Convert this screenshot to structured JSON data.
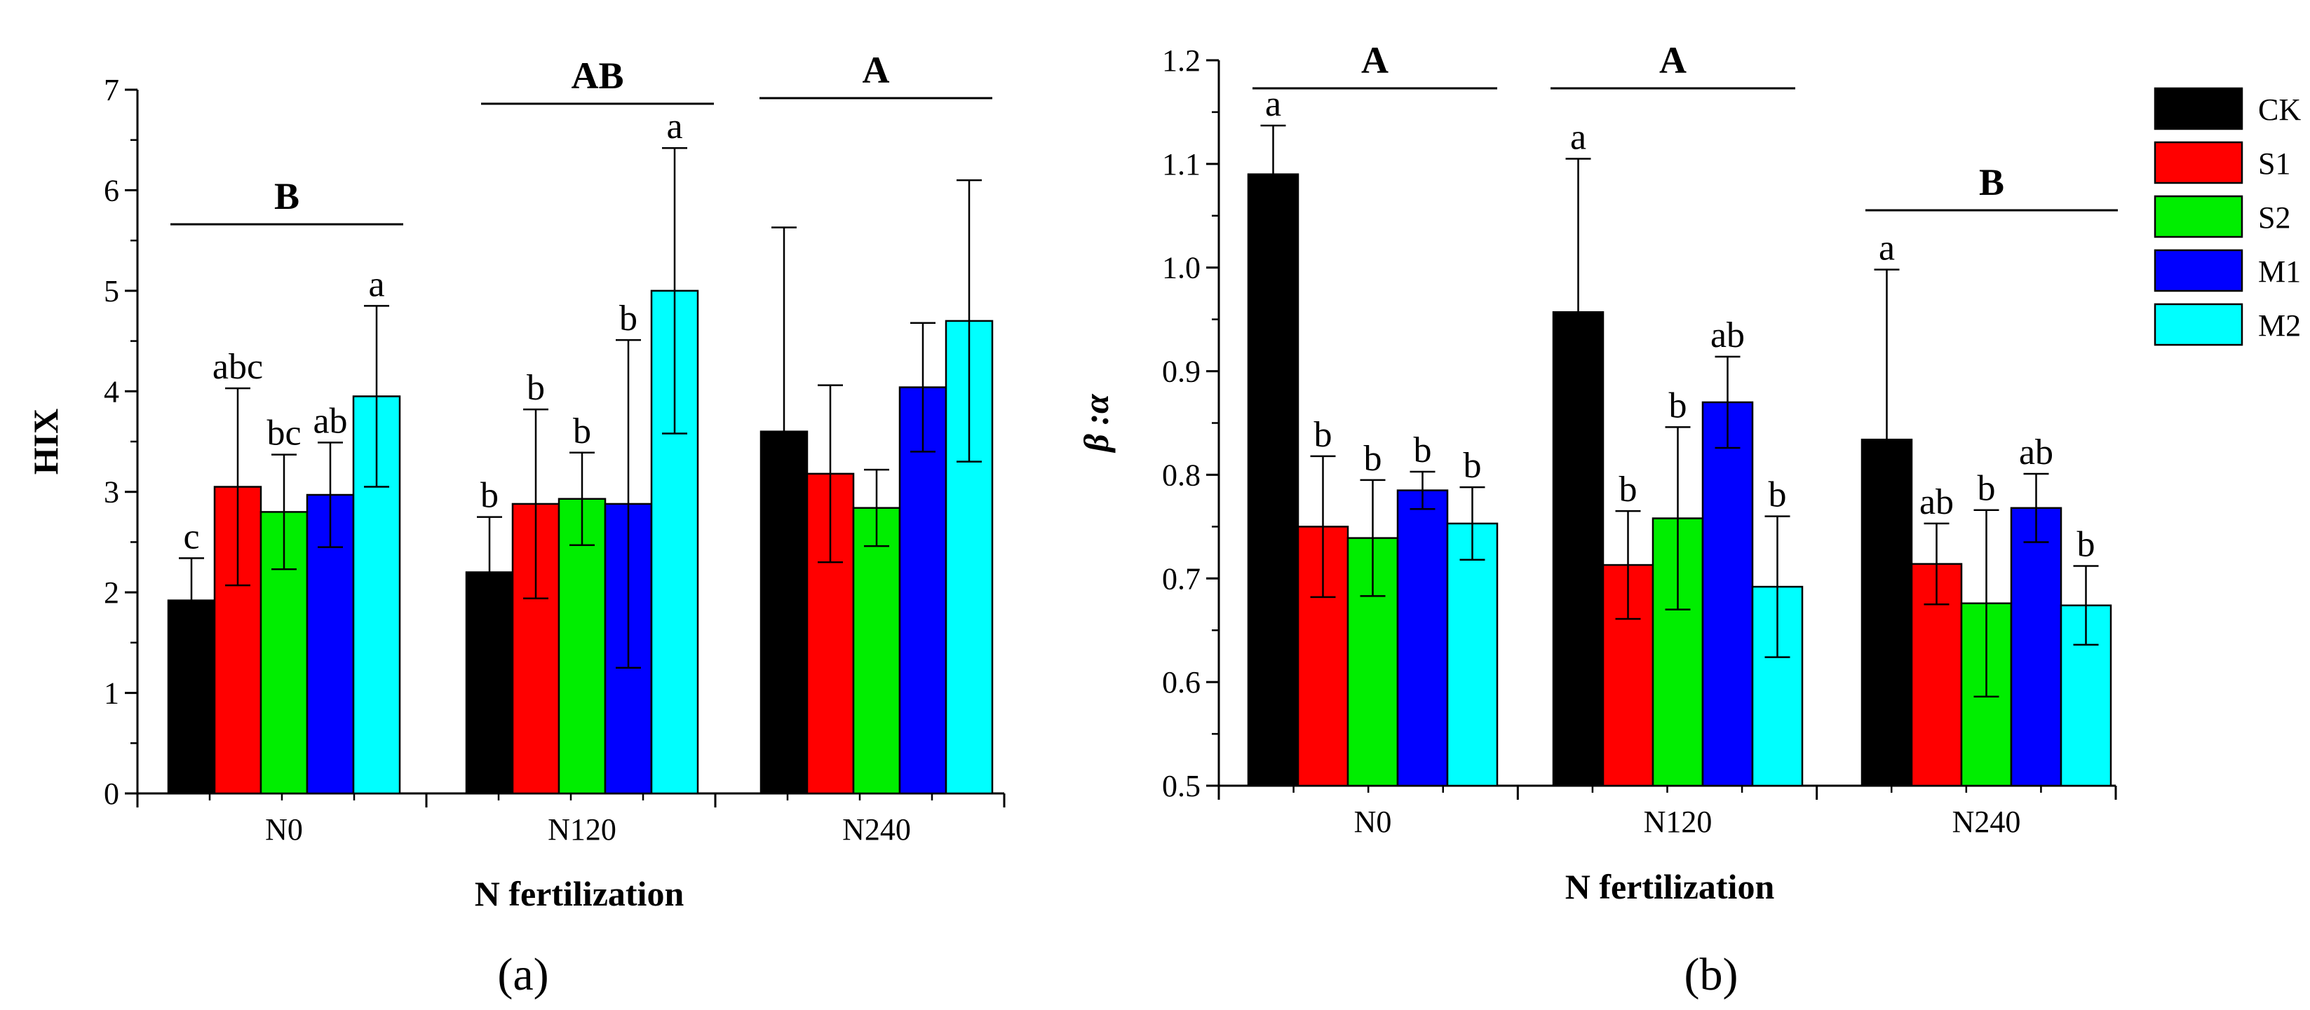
{
  "legend": {
    "items": [
      {
        "name": "CK",
        "color": "#000000"
      },
      {
        "name": "S1",
        "color": "#ff0000"
      },
      {
        "name": "S2",
        "color": "#00ee00"
      },
      {
        "name": "M1",
        "color": "#0000ff"
      },
      {
        "name": "M2",
        "color": "#00ffff"
      }
    ]
  },
  "chart_data": [
    {
      "type": "bar",
      "panel_label": "(a)",
      "panel_letter": "a",
      "xlabel": "N fertilization",
      "ylabel": "HIX",
      "ylim": [
        0,
        7
      ],
      "yticks": [
        0,
        1,
        2,
        3,
        4,
        5,
        6,
        7
      ],
      "categories": [
        "N0",
        "N120",
        "N240"
      ],
      "series": [
        {
          "name": "CK",
          "values": [
            1.92,
            2.2,
            3.6
          ],
          "errors": [
            0.42,
            0.55,
            2.03
          ],
          "letters": [
            "c",
            "b",
            ""
          ]
        },
        {
          "name": "S1",
          "values": [
            3.05,
            2.88,
            3.18
          ],
          "errors": [
            0.98,
            0.94,
            0.88
          ],
          "letters": [
            "abc",
            "b",
            ""
          ]
        },
        {
          "name": "S2",
          "values": [
            2.8,
            2.93,
            2.84
          ],
          "errors": [
            0.57,
            0.46,
            0.38
          ],
          "letters": [
            "bc",
            "b",
            ""
          ]
        },
        {
          "name": "M1",
          "values": [
            2.97,
            2.88,
            4.04
          ],
          "errors": [
            0.52,
            1.63,
            0.64
          ],
          "letters": [
            "ab",
            "b",
            ""
          ]
        },
        {
          "name": "M2",
          "values": [
            3.95,
            5.0,
            4.7
          ],
          "errors": [
            0.9,
            1.42,
            1.4
          ],
          "letters": [
            "a",
            "a",
            ""
          ]
        }
      ],
      "group_letters": [
        "B",
        "AB",
        "A"
      ]
    },
    {
      "type": "bar",
      "panel_label": "(b)",
      "panel_letter": "b",
      "xlabel": "N fertilization",
      "ylabel": "β :α",
      "ylim": [
        0.5,
        1.2
      ],
      "yticks": [
        "0.5",
        "0.6",
        "0.7",
        "0.8",
        "0.9",
        "1.0",
        "1.1",
        "1.2"
      ],
      "categories": [
        "N0",
        "N120",
        "N240"
      ],
      "series": [
        {
          "name": "CK",
          "values": [
            1.09,
            0.957,
            0.834
          ],
          "errors": [
            0.047,
            0.148,
            0.164
          ],
          "letters": [
            "a",
            "a",
            "a"
          ]
        },
        {
          "name": "S1",
          "values": [
            0.75,
            0.713,
            0.714
          ],
          "errors": [
            0.068,
            0.052,
            0.039
          ],
          "letters": [
            "b",
            "b",
            "ab"
          ]
        },
        {
          "name": "S2",
          "values": [
            0.739,
            0.758,
            0.676
          ],
          "errors": [
            0.056,
            0.088,
            0.09
          ],
          "letters": [
            "b",
            "b",
            "b"
          ]
        },
        {
          "name": "M1",
          "values": [
            0.785,
            0.87,
            0.768
          ],
          "errors": [
            0.018,
            0.044,
            0.033
          ],
          "letters": [
            "b",
            "ab",
            "ab"
          ]
        },
        {
          "name": "M2",
          "values": [
            0.753,
            0.692,
            0.674
          ],
          "errors": [
            0.035,
            0.068,
            0.038
          ],
          "letters": [
            "b",
            "b",
            "b"
          ]
        }
      ],
      "group_letters": [
        "A",
        "A",
        "B"
      ]
    }
  ]
}
